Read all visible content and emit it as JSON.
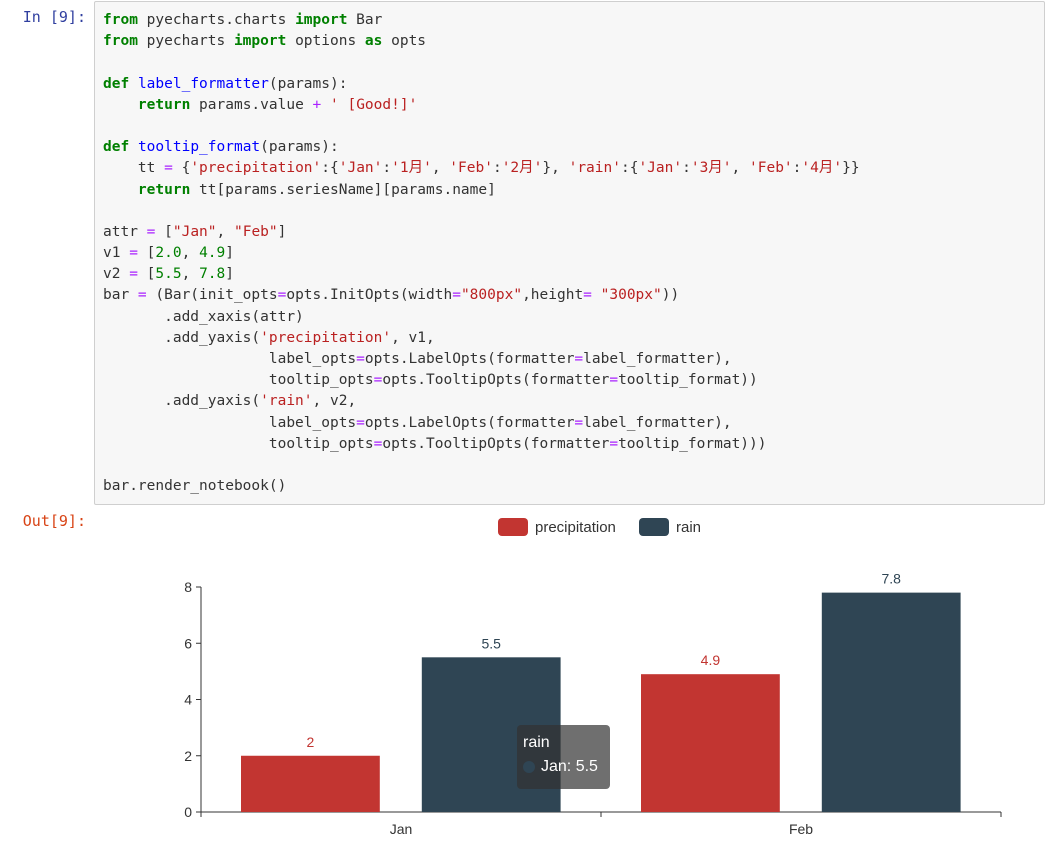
{
  "cell": {
    "in_prompt": "In  [9]:",
    "out_prompt": "Out[9]:",
    "code_lines": [
      [
        {
          "t": "from",
          "c": "kw"
        },
        {
          "t": " pyecharts.charts "
        },
        {
          "t": "import",
          "c": "kw"
        },
        {
          "t": " Bar"
        }
      ],
      [
        {
          "t": "from",
          "c": "kw"
        },
        {
          "t": " pyecharts "
        },
        {
          "t": "import",
          "c": "kw"
        },
        {
          "t": " options "
        },
        {
          "t": "as",
          "c": "kw"
        },
        {
          "t": " opts"
        }
      ],
      [
        {
          "t": ""
        }
      ],
      [
        {
          "t": "def",
          "c": "kw"
        },
        {
          "t": " "
        },
        {
          "t": "label_formatter",
          "c": "fn"
        },
        {
          "t": "(params):"
        }
      ],
      [
        {
          "t": "    "
        },
        {
          "t": "return",
          "c": "kw"
        },
        {
          "t": " params.value "
        },
        {
          "t": "+",
          "c": "op"
        },
        {
          "t": " "
        },
        {
          "t": "' [Good!]'",
          "c": "str"
        }
      ],
      [
        {
          "t": ""
        }
      ],
      [
        {
          "t": "def",
          "c": "kw"
        },
        {
          "t": " "
        },
        {
          "t": "tooltip_format",
          "c": "fn"
        },
        {
          "t": "(params):"
        }
      ],
      [
        {
          "t": "    tt "
        },
        {
          "t": "=",
          "c": "op"
        },
        {
          "t": " {"
        },
        {
          "t": "'precipitation'",
          "c": "str"
        },
        {
          "t": ":{"
        },
        {
          "t": "'Jan'",
          "c": "str"
        },
        {
          "t": ":"
        },
        {
          "t": "'1月'",
          "c": "str"
        },
        {
          "t": ", "
        },
        {
          "t": "'Feb'",
          "c": "str"
        },
        {
          "t": ":"
        },
        {
          "t": "'2月'",
          "c": "str"
        },
        {
          "t": "}, "
        },
        {
          "t": "'rain'",
          "c": "str"
        },
        {
          "t": ":{"
        },
        {
          "t": "'Jan'",
          "c": "str"
        },
        {
          "t": ":"
        },
        {
          "t": "'3月'",
          "c": "str"
        },
        {
          "t": ", "
        },
        {
          "t": "'Feb'",
          "c": "str"
        },
        {
          "t": ":"
        },
        {
          "t": "'4月'",
          "c": "str"
        },
        {
          "t": "}}"
        }
      ],
      [
        {
          "t": "    "
        },
        {
          "t": "return",
          "c": "kw"
        },
        {
          "t": " tt[params.seriesName][params.name]"
        }
      ],
      [
        {
          "t": ""
        }
      ],
      [
        {
          "t": "attr "
        },
        {
          "t": "=",
          "c": "op"
        },
        {
          "t": " ["
        },
        {
          "t": "\"Jan\"",
          "c": "str"
        },
        {
          "t": ", "
        },
        {
          "t": "\"Feb\"",
          "c": "str"
        },
        {
          "t": "]"
        }
      ],
      [
        {
          "t": "v1 "
        },
        {
          "t": "=",
          "c": "op"
        },
        {
          "t": " ["
        },
        {
          "t": "2.0",
          "c": "num"
        },
        {
          "t": ", "
        },
        {
          "t": "4.9",
          "c": "num"
        },
        {
          "t": "]"
        }
      ],
      [
        {
          "t": "v2 "
        },
        {
          "t": "=",
          "c": "op"
        },
        {
          "t": " ["
        },
        {
          "t": "5.5",
          "c": "num"
        },
        {
          "t": ", "
        },
        {
          "t": "7.8",
          "c": "num"
        },
        {
          "t": "]"
        }
      ],
      [
        {
          "t": "bar "
        },
        {
          "t": "=",
          "c": "op"
        },
        {
          "t": " (Bar(init_opts"
        },
        {
          "t": "=",
          "c": "op"
        },
        {
          "t": "opts.InitOpts(width"
        },
        {
          "t": "=",
          "c": "op"
        },
        {
          "t": "\"800px\"",
          "c": "str"
        },
        {
          "t": ",height"
        },
        {
          "t": "=",
          "c": "op"
        },
        {
          "t": " "
        },
        {
          "t": "\"300px\"",
          "c": "str"
        },
        {
          "t": "))"
        }
      ],
      [
        {
          "t": "       .add_xaxis(attr)"
        }
      ],
      [
        {
          "t": "       .add_yaxis("
        },
        {
          "t": "'precipitation'",
          "c": "str"
        },
        {
          "t": ", v1,"
        }
      ],
      [
        {
          "t": "                   label_opts"
        },
        {
          "t": "=",
          "c": "op"
        },
        {
          "t": "opts.LabelOpts(formatter"
        },
        {
          "t": "=",
          "c": "op"
        },
        {
          "t": "label_formatter),"
        }
      ],
      [
        {
          "t": "                   tooltip_opts"
        },
        {
          "t": "=",
          "c": "op"
        },
        {
          "t": "opts.TooltipOpts(formatter"
        },
        {
          "t": "=",
          "c": "op"
        },
        {
          "t": "tooltip_format))"
        }
      ],
      [
        {
          "t": "       .add_yaxis("
        },
        {
          "t": "'rain'",
          "c": "str"
        },
        {
          "t": ", v2,"
        }
      ],
      [
        {
          "t": "                   label_opts"
        },
        {
          "t": "=",
          "c": "op"
        },
        {
          "t": "opts.LabelOpts(formatter"
        },
        {
          "t": "=",
          "c": "op"
        },
        {
          "t": "label_formatter),"
        }
      ],
      [
        {
          "t": "                   tooltip_opts"
        },
        {
          "t": "=",
          "c": "op"
        },
        {
          "t": "opts.TooltipOpts(formatter"
        },
        {
          "t": "=",
          "c": "op"
        },
        {
          "t": "tooltip_format)))"
        }
      ],
      [
        {
          "t": ""
        }
      ],
      [
        {
          "t": "bar.render_notebook()"
        }
      ]
    ]
  },
  "colors": {
    "precipitation": "#c23531",
    "rain": "#2f4554"
  },
  "chart_data": {
    "type": "bar",
    "categories": [
      "Jan",
      "Feb"
    ],
    "series": [
      {
        "name": "precipitation",
        "values": [
          2,
          4.9
        ],
        "color": "#c23531"
      },
      {
        "name": "rain",
        "values": [
          5.5,
          7.8
        ],
        "color": "#2f4554"
      }
    ],
    "ylim": [
      0,
      8
    ],
    "yticks": [
      "0",
      "2",
      "4",
      "6",
      "8"
    ],
    "legend": "top-center",
    "grid": false
  },
  "tooltip": {
    "title": "rain",
    "row": "Jan: 5.5",
    "dot_color": "#2f4554"
  }
}
